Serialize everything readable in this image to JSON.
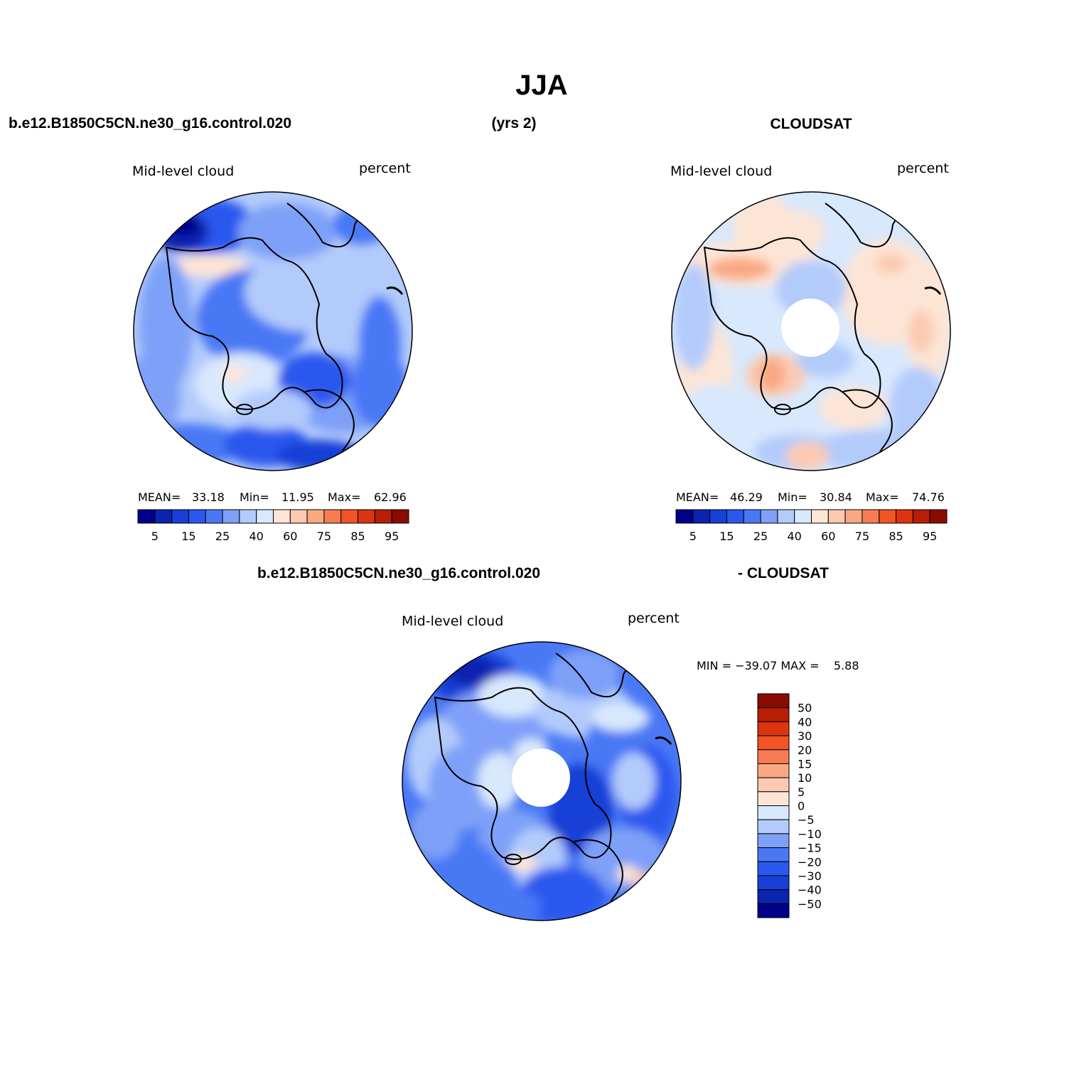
{
  "title": "JJA",
  "header": {
    "case_name": "b.e12.B1850C5CN.ne30_g16.control.020",
    "years": "(yrs 2)",
    "obs_name": "CLOUDSAT"
  },
  "diff_header": {
    "case_name": "b.e12.B1850C5CN.ne30_g16.control.020",
    "obs_name": "- CLOUDSAT"
  },
  "colors": {
    "blue_scale": [
      "#00008b",
      "#0a24b0",
      "#1640d6",
      "#2a58ee",
      "#4a78f5",
      "#7ea0f8",
      "#b3cbfb",
      "#d8e8fd"
    ],
    "red_scale": [
      "#fde5d6",
      "#fbcab0",
      "#f9a982",
      "#f77c52",
      "#f25426",
      "#dd3410",
      "#b81e06",
      "#8a0b00"
    ]
  },
  "chart_data": [
    {
      "type": "heatmap",
      "projection": "north-polar-stereographic",
      "variable": "Mid-level cloud",
      "units": "percent",
      "stats": {
        "mean_label": "MEAN=",
        "mean": "33.18",
        "min_label": "Min=",
        "min": "11.95",
        "max_label": "Max=",
        "max": "62.96"
      },
      "colorbar": {
        "orientation": "horizontal",
        "levels": [
          5,
          10,
          15,
          20,
          25,
          30,
          40,
          50,
          60,
          70,
          75,
          80,
          85,
          90,
          95
        ],
        "tick_labels": [
          "5",
          "15",
          "25",
          "40",
          "60",
          "75",
          "85",
          "95"
        ]
      },
      "missing_pole_hole": false
    },
    {
      "type": "heatmap",
      "projection": "north-polar-stereographic",
      "variable": "Mid-level cloud",
      "units": "percent",
      "stats": {
        "mean_label": "MEAN=",
        "mean": "46.29",
        "min_label": "Min=",
        "min": "30.84",
        "max_label": "Max=",
        "max": "74.76"
      },
      "colorbar": {
        "orientation": "horizontal",
        "levels": [
          5,
          10,
          15,
          20,
          25,
          30,
          40,
          50,
          60,
          70,
          75,
          80,
          85,
          90,
          95
        ],
        "tick_labels": [
          "5",
          "15",
          "25",
          "40",
          "60",
          "75",
          "85",
          "95"
        ]
      },
      "missing_pole_hole": true
    },
    {
      "type": "heatmap",
      "projection": "north-polar-stereographic",
      "variable": "Mid-level cloud",
      "units": "percent",
      "stats": {
        "minmax_text": "MIN = −39.07 MAX =    5.88",
        "min": -39.07,
        "max": 5.88
      },
      "colorbar": {
        "orientation": "vertical",
        "tick_labels": [
          "50",
          "40",
          "30",
          "20",
          "15",
          "10",
          "5",
          "0",
          "−5",
          "−10",
          "−15",
          "−20",
          "−30",
          "−40",
          "−50"
        ]
      },
      "missing_pole_hole": true
    }
  ]
}
